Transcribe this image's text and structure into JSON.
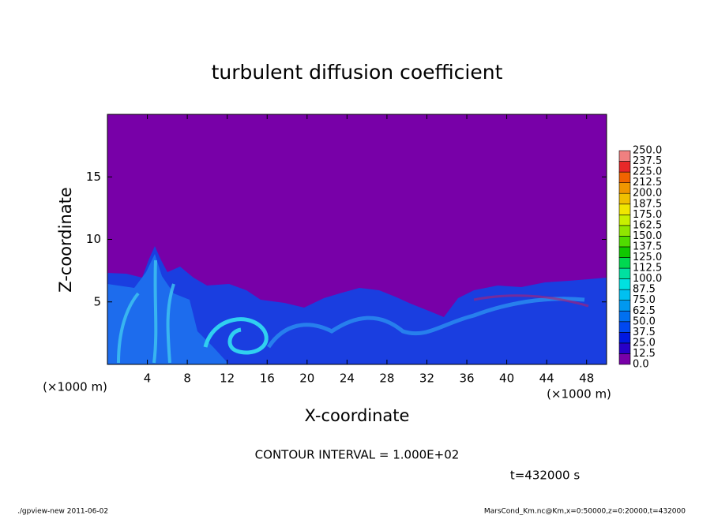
{
  "chart_data": {
    "type": "contour",
    "title": "turbulent diffusion coefficient",
    "xlabel": "X-coordinate",
    "ylabel": "Z-coordinate",
    "x_unit": "(×1000 m)",
    "x_unit_right": "(×1000 m)",
    "xlim": [
      0,
      50
    ],
    "xticks": [
      4,
      8,
      12,
      16,
      20,
      24,
      28,
      32,
      36,
      40,
      44,
      48
    ],
    "ylim": [
      0,
      20
    ],
    "yticks": [
      5,
      10,
      15
    ],
    "contour_note": "CONTOUR INTERVAL = 1.000E+02",
    "time_note": "t=432000 s",
    "footer_left": "./gpview-new  2011-06-02",
    "footer_right": "MarsCond_Km.nc@Km,x=0:50000,z=0:20000,t=432000",
    "colorbar": {
      "levels": [
        {
          "value": 0,
          "label": "0.0"
        },
        12.5,
        {
          "value": 25,
          "label": "25.0"
        },
        37.5,
        {
          "value": 50,
          "label": "50.0"
        },
        62.5,
        {
          "value": 75,
          "label": "75.0"
        },
        87.5,
        {
          "value": 100,
          "label": "100.0"
        },
        112.5,
        {
          "value": 125,
          "label": "125.0"
        },
        137.5,
        {
          "value": 150,
          "label": "150.0"
        },
        162.5,
        {
          "value": 175,
          "label": "175.0"
        },
        187.5,
        {
          "value": 200,
          "label": "200.0"
        },
        212.5,
        {
          "value": 225,
          "label": "225.0"
        },
        237.5,
        {
          "value": 250,
          "label": "250.0"
        }
      ],
      "colors": [
        "#7800a8",
        "#2800c8",
        "#0018e0",
        "#0048f0",
        "#0070f0",
        "#0098f0",
        "#00c0f0",
        "#00e0e0",
        "#00e0a0",
        "#00d850",
        "#10c800",
        "#50dc00",
        "#90e600",
        "#c8f000",
        "#f0e600",
        "#f0c000",
        "#f09600",
        "#f06400",
        "#e82828",
        "#f08080"
      ]
    }
  }
}
